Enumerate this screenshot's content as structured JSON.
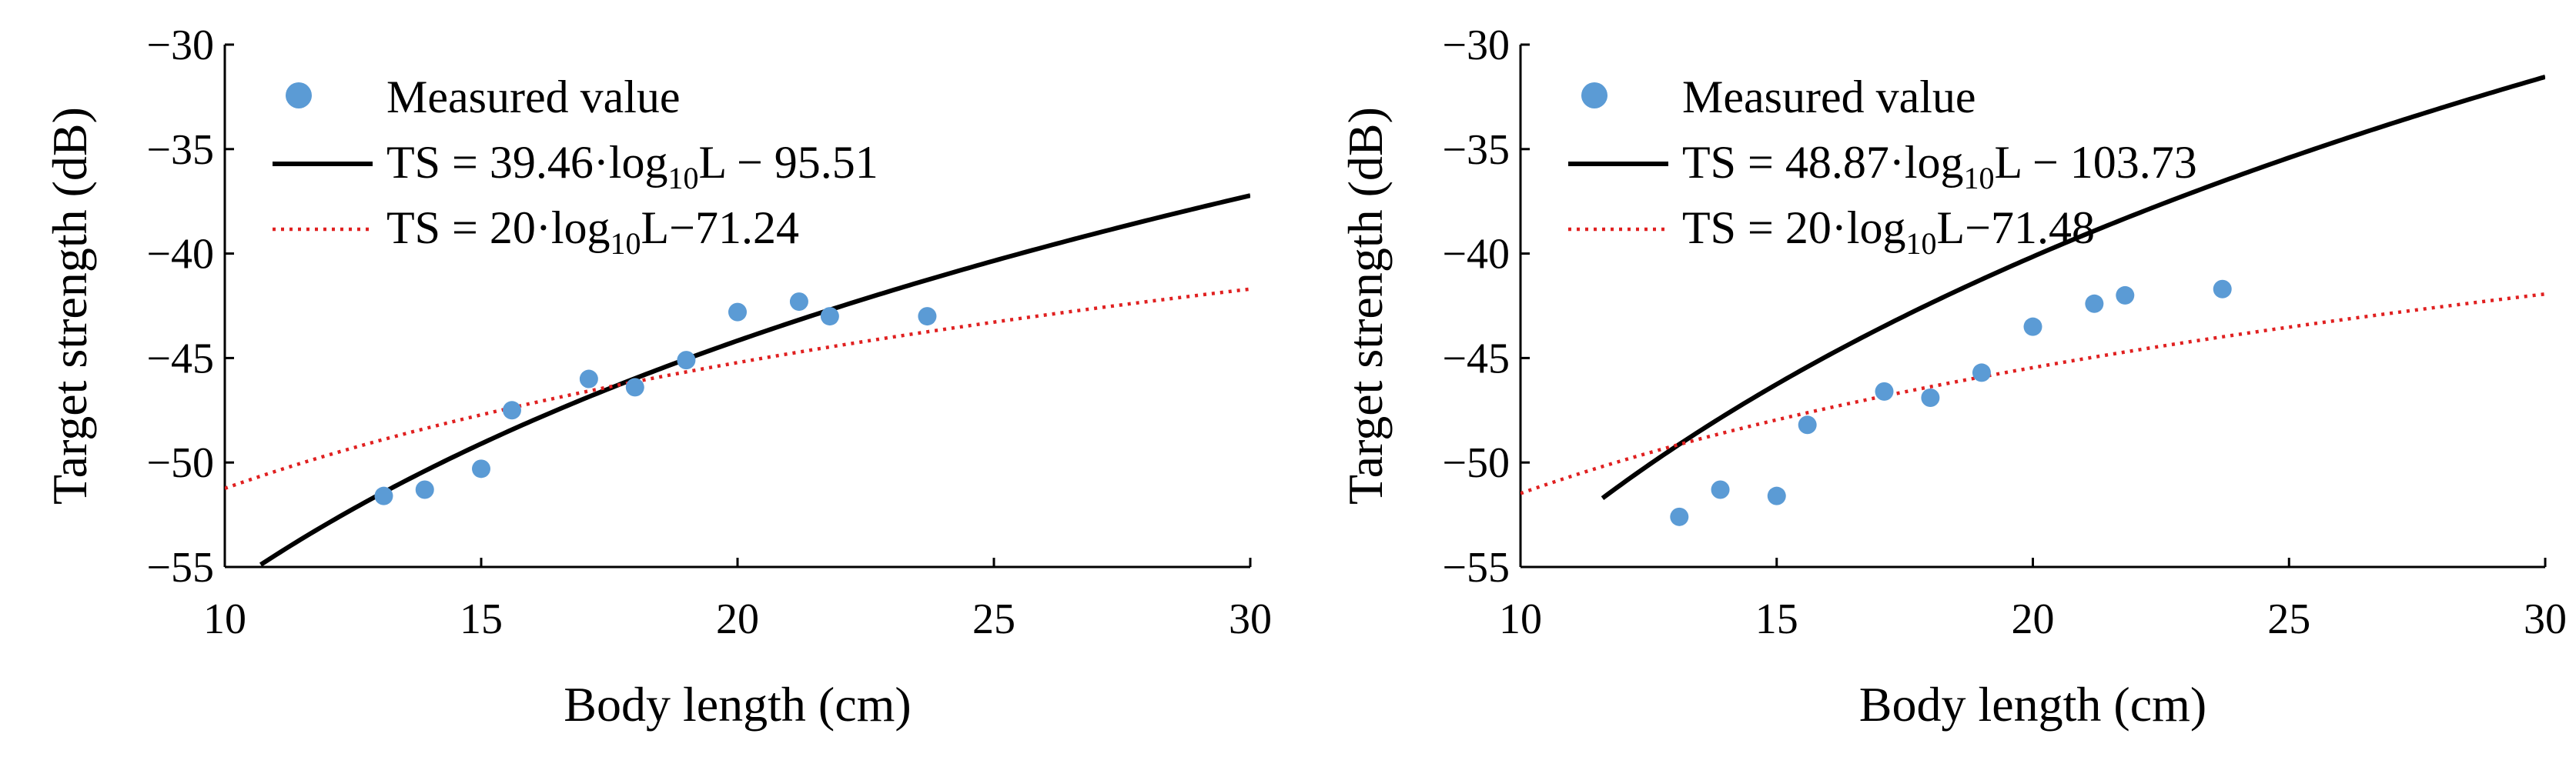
{
  "chart_data": [
    {
      "type": "scatter",
      "xlabel": "Body length (cm)",
      "ylabel": "Target strength (dB)",
      "xlim": [
        10,
        30
      ],
      "ylim": [
        -55,
        -30
      ],
      "xticks": [
        10,
        15,
        20,
        25,
        30
      ],
      "yticks": [
        -30,
        -35,
        -40,
        -45,
        -50,
        -55
      ],
      "xtick_labels": [
        "10",
        "15",
        "20",
        "25",
        "30"
      ],
      "ytick_labels": [
        "−30",
        "−35",
        "−40",
        "−45",
        "−50",
        "−55"
      ],
      "legend_position": "top-left",
      "series": [
        {
          "name": "Measured value",
          "kind": "scatter",
          "color": "#5b9bd5",
          "x": [
            13.1,
            13.9,
            15.0,
            15.6,
            17.1,
            18.0,
            19.0,
            20.0,
            21.2,
            21.8,
            23.7
          ],
          "y": [
            -51.6,
            -51.3,
            -50.3,
            -47.5,
            -46.0,
            -46.4,
            -45.1,
            -42.8,
            -42.3,
            -43.0,
            -43.0
          ]
        },
        {
          "name": "TS = 39.46·log10L − 95.51",
          "kind": "line",
          "style": "solid",
          "color": "#000000",
          "a": 39.46,
          "b": -95.51,
          "x_from": 10.7,
          "x_to": 30
        },
        {
          "name": "TS = 20·log10L−71.24",
          "kind": "line",
          "style": "dotted",
          "color": "#e02020",
          "a": 20,
          "b": -71.24,
          "x_from": 10,
          "x_to": 30
        }
      ],
      "legend": [
        {
          "type": "marker",
          "text": "Measured value"
        },
        {
          "type": "line",
          "pre": "TS = 39.46·log",
          "sub": "10",
          "post": "L − 95.51"
        },
        {
          "type": "dotted",
          "pre": "TS = 20·log",
          "sub": "10",
          "post": "L−71.24"
        }
      ]
    },
    {
      "type": "scatter",
      "xlabel": "Body length (cm)",
      "ylabel": "Target strength (dB)",
      "xlim": [
        10,
        30
      ],
      "ylim": [
        -55,
        -30
      ],
      "xticks": [
        10,
        15,
        20,
        25,
        30
      ],
      "yticks": [
        -30,
        -35,
        -40,
        -45,
        -50,
        -55
      ],
      "xtick_labels": [
        "10",
        "15",
        "20",
        "25",
        "30"
      ],
      "ytick_labels": [
        "−30",
        "−35",
        "−40",
        "−45",
        "−50",
        "−55"
      ],
      "legend_position": "top-left",
      "series": [
        {
          "name": "Measured value",
          "kind": "scatter",
          "color": "#5b9bd5",
          "x": [
            13.1,
            13.9,
            15.0,
            15.6,
            17.1,
            18.0,
            19.0,
            20.0,
            21.2,
            21.8,
            23.7
          ],
          "y": [
            -52.6,
            -51.3,
            -51.6,
            -48.2,
            -46.6,
            -46.9,
            -45.7,
            -43.5,
            -42.4,
            -42.0,
            -41.7
          ]
        },
        {
          "name": "TS = 48.87·log10L − 103.73",
          "kind": "line",
          "style": "solid",
          "color": "#000000",
          "a": 48.87,
          "b": -103.73,
          "x_from": 11.6,
          "x_to": 30
        },
        {
          "name": "TS = 20·log10L−71.48",
          "kind": "line",
          "style": "dotted",
          "color": "#e02020",
          "a": 20,
          "b": -71.48,
          "x_from": 10,
          "x_to": 30
        }
      ],
      "legend": [
        {
          "type": "marker",
          "text": "Measured value"
        },
        {
          "type": "line",
          "pre": "TS = 48.87·log",
          "sub": "10",
          "post": "L − 103.73"
        },
        {
          "type": "dotted",
          "pre": "TS = 20·log",
          "sub": "10",
          "post": "L−71.48"
        }
      ]
    }
  ]
}
